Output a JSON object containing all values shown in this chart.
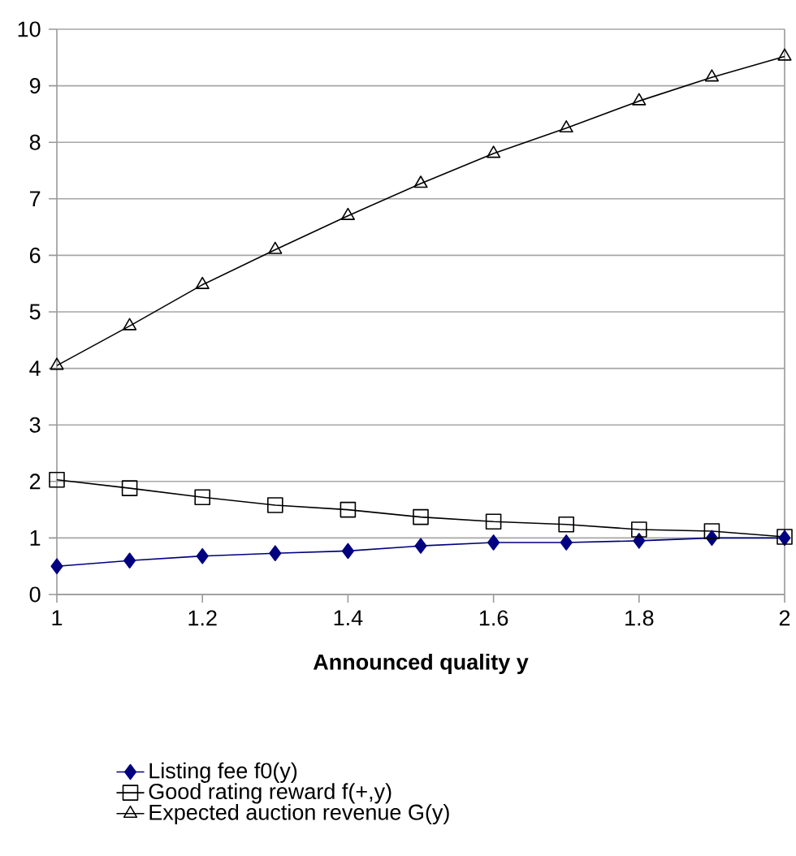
{
  "chart_data": {
    "type": "line",
    "xlabel": "Announced quality y",
    "x": [
      1,
      1.1,
      1.2,
      1.3,
      1.4,
      1.5,
      1.6,
      1.7,
      1.8,
      1.9,
      2
    ],
    "series": [
      {
        "name": "Listing fee f0(y)",
        "color": "#000080",
        "marker": "diamond",
        "values": [
          0.5,
          0.6,
          0.68,
          0.73,
          0.77,
          0.86,
          0.92,
          0.92,
          0.95,
          1.0,
          1.0
        ]
      },
      {
        "name": "Good rating reward f(+,y)",
        "color": "#000000",
        "marker": "square",
        "values": [
          2.03,
          1.88,
          1.72,
          1.58,
          1.5,
          1.37,
          1.29,
          1.24,
          1.15,
          1.12,
          1.02
        ]
      },
      {
        "name": "Expected auction revenue G(y)",
        "color": "#000000",
        "marker": "triangle",
        "values": [
          4.05,
          4.75,
          5.48,
          6.1,
          6.7,
          7.27,
          7.8,
          8.25,
          8.73,
          9.15,
          9.52
        ]
      }
    ],
    "xlim": [
      1,
      2
    ],
    "xticks": [
      1,
      1.2,
      1.4,
      1.6,
      1.8,
      2
    ],
    "ylim": [
      0,
      10
    ],
    "yticks": [
      0,
      1,
      2,
      3,
      4,
      5,
      6,
      7,
      8,
      9,
      10
    ],
    "grid": "y",
    "legend": "bottom",
    "line_style": "solid"
  }
}
